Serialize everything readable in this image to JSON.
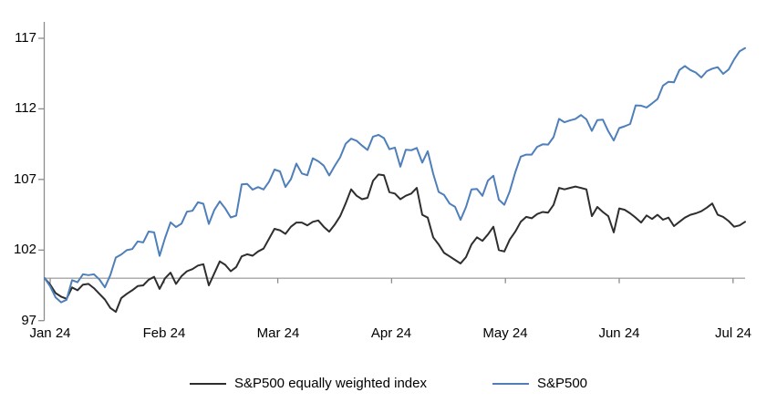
{
  "chart_data": {
    "type": "line",
    "title": "",
    "grid": false,
    "background": "#ffffff",
    "axis_color": "#8c8c8c",
    "x_axis": {
      "tick_labels": [
        "Jan 24",
        "Feb 24",
        "Mar 24",
        "Apr 24",
        "May 24",
        "Jun 24",
        "Jul 24"
      ],
      "tick_positions": [
        0,
        1,
        2,
        3,
        4,
        5,
        6
      ]
    },
    "y_axis": {
      "tick_labels": [
        "97",
        "102",
        "107",
        "112",
        "117"
      ],
      "tick_values": [
        97,
        102,
        107,
        112,
        117
      ],
      "range": [
        97,
        117
      ]
    },
    "reference_line": {
      "value": 100,
      "color": "#a6a6a6"
    },
    "x_range_months": [
      0,
      6.12
    ],
    "sampling": "evenly spaced trading days from index start (=100) to early Jul 24",
    "legend": [
      {
        "label": "S&P500 equally weighted index",
        "color": "#2e2e2e"
      },
      {
        "label": "S&P500",
        "color": "#4e7fba"
      }
    ],
    "series": [
      {
        "name": "S&P500 equally weighted index",
        "color": "#2e2e2e",
        "values": [
          100,
          99.55,
          98.95,
          98.7,
          98.55,
          99.35,
          99.15,
          99.55,
          99.6,
          99.3,
          98.9,
          98.5,
          97.9,
          97.62,
          98.6,
          98.9,
          99.15,
          99.45,
          99.5,
          99.9,
          100.1,
          99.25,
          100.0,
          100.4,
          99.6,
          100.15,
          100.5,
          100.65,
          100.9,
          101.0,
          99.5,
          100.35,
          101.2,
          100.95,
          100.5,
          100.8,
          101.55,
          101.7,
          101.6,
          101.9,
          102.1,
          102.8,
          103.5,
          103.4,
          103.15,
          103.65,
          103.95,
          103.95,
          103.75,
          104.0,
          104.1,
          103.65,
          103.3,
          103.8,
          104.4,
          105.3,
          106.3,
          105.85,
          105.6,
          105.7,
          106.9,
          107.35,
          107.3,
          106.1,
          106.0,
          105.6,
          105.85,
          106.0,
          106.4,
          104.5,
          104.3,
          102.9,
          102.4,
          101.8,
          101.55,
          101.3,
          101.05,
          101.5,
          102.4,
          102.9,
          102.65,
          103.1,
          103.65,
          102.0,
          101.9,
          102.75,
          103.3,
          104.0,
          104.35,
          104.25,
          104.55,
          104.7,
          104.65,
          105.2,
          106.4,
          106.3,
          106.4,
          106.5,
          106.4,
          106.3,
          104.4,
          105.05,
          104.7,
          104.4,
          103.25,
          104.95,
          104.85,
          104.6,
          104.3,
          103.95,
          104.45,
          104.2,
          104.5,
          104.15,
          104.3,
          103.7,
          104.0,
          104.3,
          104.5,
          104.6,
          104.75,
          105.0,
          105.3,
          104.5,
          104.35,
          104.05,
          103.65,
          103.75,
          104.0
        ]
      },
      {
        "name": "S&P500",
        "color": "#4e7fba",
        "values": [
          100,
          99.43,
          98.64,
          98.3,
          98.48,
          99.87,
          99.72,
          100.29,
          100.22,
          100.29,
          99.92,
          99.36,
          100.23,
          101.47,
          101.69,
          101.99,
          102.07,
          102.61,
          102.54,
          103.31,
          103.25,
          101.59,
          102.86,
          103.96,
          103.63,
          103.87,
          104.72,
          104.78,
          105.38,
          105.28,
          103.85,
          104.84,
          105.45,
          104.94,
          104.31,
          104.44,
          106.65,
          106.69,
          106.28,
          106.46,
          106.29,
          106.84,
          107.7,
          107.57,
          106.47,
          107.02,
          108.12,
          107.42,
          107.3,
          108.5,
          108.29,
          107.98,
          107.28,
          107.96,
          108.57,
          109.53,
          109.89,
          109.74,
          109.4,
          109.09,
          110.03,
          110.16,
          109.93,
          109.14,
          109.26,
          107.91,
          109.11,
          109.07,
          109.23,
          108.19,
          109.0,
          107.41,
          106.12,
          105.9,
          105.29,
          105.06,
          104.14,
          105.05,
          106.3,
          106.33,
          105.84,
          106.92,
          107.26,
          105.57,
          105.21,
          106.17,
          107.51,
          108.62,
          108.76,
          108.76,
          109.31,
          109.49,
          109.47,
          110.0,
          111.29,
          111.05,
          111.18,
          111.29,
          111.56,
          111.26,
          110.44,
          111.21,
          111.24,
          110.42,
          109.76,
          110.64,
          110.77,
          110.93,
          112.25,
          112.23,
          112.1,
          112.39,
          112.7,
          113.65,
          113.92,
          113.88,
          114.75,
          115.04,
          114.75,
          114.57,
          114.22,
          114.67,
          114.85,
          114.95,
          114.48,
          114.79,
          115.5,
          116.08,
          116.3
        ]
      }
    ]
  }
}
